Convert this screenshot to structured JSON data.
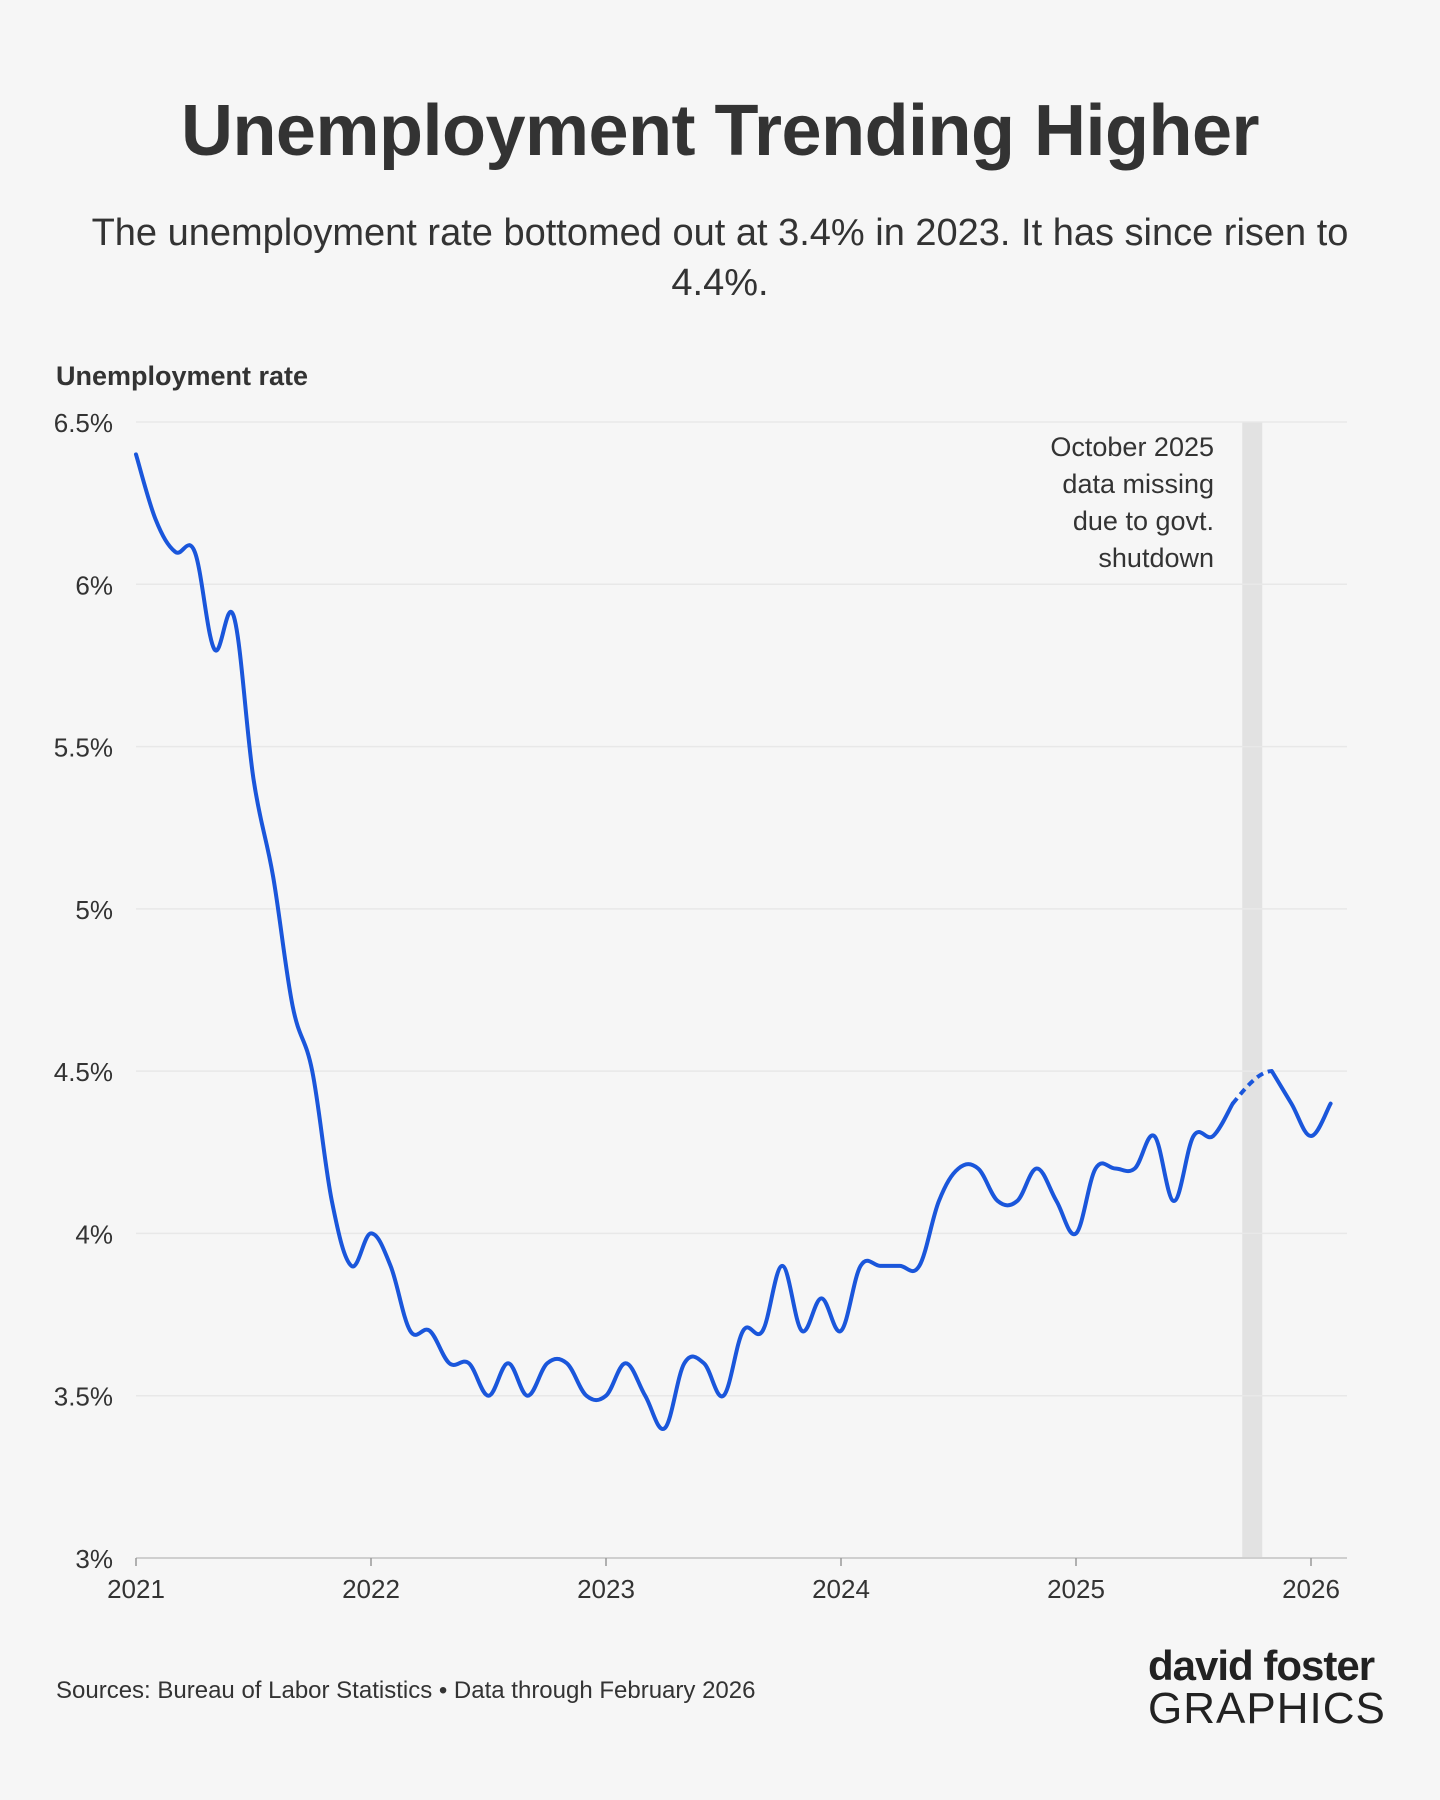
{
  "title": "Unemployment Trending Higher",
  "subtitle": "The unemployment rate bottomed out at 3.4% in 2023. It has since risen to 4.4%.",
  "source": "Sources: Bureau of Labor Statistics • Data through February 2026",
  "logo": {
    "line1": "david foster",
    "line2": "GRAPHICS",
    "accent_color": "#1ea0f0"
  },
  "chart_data": {
    "type": "line",
    "ylabel": "Unemployment rate",
    "ylim": [
      3,
      6.5
    ],
    "yticks": [
      {
        "value": 3,
        "label": "3%"
      },
      {
        "value": 3.5,
        "label": "3.5%"
      },
      {
        "value": 4,
        "label": "4%"
      },
      {
        "value": 4.5,
        "label": "4.5%"
      },
      {
        "value": 5,
        "label": "5%"
      },
      {
        "value": 5.5,
        "label": "5.5%"
      },
      {
        "value": 6,
        "label": "6%"
      },
      {
        "value": 6.5,
        "label": "6.5%"
      }
    ],
    "xticks": [
      "2021",
      "2022",
      "2023",
      "2024",
      "2025",
      "2026"
    ],
    "grid": true,
    "line_color": "#1a56db",
    "annotation": {
      "lines": [
        "October 2025",
        "data missing",
        "due to govt.",
        "shutdown"
      ],
      "month": "2025-10",
      "band_color": "#e2e2e2"
    },
    "series": [
      {
        "x": [
          "2021-01",
          "2021-02",
          "2021-03",
          "2021-04",
          "2021-05",
          "2021-06",
          "2021-07",
          "2021-08",
          "2021-09",
          "2021-10",
          "2021-11",
          "2021-12",
          "2022-01",
          "2022-02",
          "2022-03",
          "2022-04",
          "2022-05",
          "2022-06",
          "2022-07",
          "2022-08",
          "2022-09",
          "2022-10",
          "2022-11",
          "2022-12",
          "2023-01",
          "2023-02",
          "2023-03",
          "2023-04",
          "2023-05",
          "2023-06",
          "2023-07",
          "2023-08",
          "2023-09",
          "2023-10",
          "2023-11",
          "2023-12",
          "2024-01",
          "2024-02",
          "2024-03",
          "2024-04",
          "2024-05",
          "2024-06",
          "2024-07",
          "2024-08",
          "2024-09",
          "2024-10",
          "2024-11",
          "2024-12",
          "2025-01",
          "2025-02",
          "2025-03",
          "2025-04",
          "2025-05",
          "2025-06",
          "2025-07",
          "2025-08",
          "2025-09",
          "2025-11",
          "2025-12",
          "2026-01",
          "2026-02"
        ],
        "values": [
          6.4,
          6.2,
          6.1,
          6.1,
          5.8,
          5.9,
          5.4,
          5.1,
          4.7,
          4.5,
          4.1,
          3.9,
          4.0,
          3.9,
          3.7,
          3.7,
          3.6,
          3.6,
          3.5,
          3.6,
          3.5,
          3.6,
          3.6,
          3.5,
          3.5,
          3.6,
          3.5,
          3.4,
          3.6,
          3.6,
          3.5,
          3.7,
          3.7,
          3.9,
          3.7,
          3.8,
          3.7,
          3.9,
          3.9,
          3.9,
          3.9,
          4.1,
          4.2,
          4.2,
          4.1,
          4.1,
          4.2,
          4.1,
          4.0,
          4.2,
          4.2,
          4.2,
          4.3,
          4.1,
          4.3,
          4.3,
          4.4,
          4.5,
          4.4,
          4.3,
          4.4
        ]
      }
    ]
  }
}
